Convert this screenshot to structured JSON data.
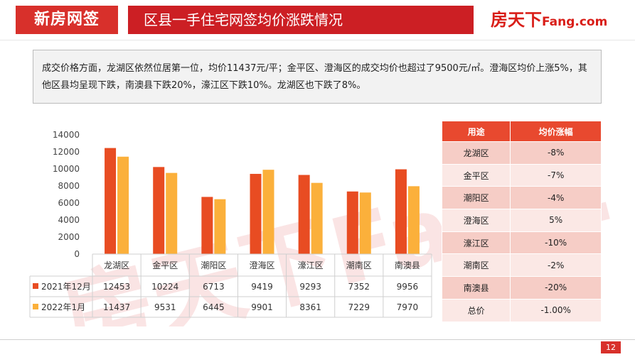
{
  "header": {
    "tag": "新房网签",
    "title": "区县一手住宅网签均价涨跌情况",
    "logo_main": "房天下",
    "logo_sub": "Fang.com"
  },
  "summary": "成交价格方面，龙湖区依然位居第一位，均价11437元/平；金平区、澄海区的成交均价也超过了9500元/㎡。澄海区均价上涨5%，其他区县均呈现下跌，南澳县下跌20%，濠江区下跌10%。龙湖区也下跌了8%。",
  "watermark": "房天下Fang.com",
  "chart_data": {
    "type": "bar",
    "categories": [
      "龙湖区",
      "金平区",
      "潮阳区",
      "澄海区",
      "濠江区",
      "潮南区",
      "南澳县"
    ],
    "series": [
      {
        "name": "2021年12月",
        "color": "#e84c22",
        "values": [
          12453,
          10224,
          6713,
          9419,
          9293,
          7352,
          9956
        ]
      },
      {
        "name": "2022年1月",
        "color": "#fbb03b",
        "values": [
          11437,
          9531,
          6445,
          9901,
          8361,
          7229,
          7970
        ]
      }
    ],
    "ylim": [
      0,
      14000
    ],
    "yticks": [
      0,
      2000,
      4000,
      6000,
      8000,
      10000,
      12000,
      14000
    ],
    "grid": false,
    "legend": "data-table"
  },
  "change_table": {
    "headers": [
      "用途",
      "均价涨幅"
    ],
    "rows": [
      {
        "name": "龙湖区",
        "value": "-8%"
      },
      {
        "name": "金平区",
        "value": "-7%"
      },
      {
        "name": "潮阳区",
        "value": "-4%"
      },
      {
        "name": "澄海区",
        "value": "5%"
      },
      {
        "name": "濠江区",
        "value": "-10%"
      },
      {
        "name": "潮南区",
        "value": "-2%"
      },
      {
        "name": "南澳县",
        "value": "-20%"
      },
      {
        "name": "总价",
        "value": "-1.00%"
      }
    ]
  },
  "page_number": "12",
  "colors": {
    "brand_red": "#cc1f24",
    "table_header": "#e8492f"
  }
}
